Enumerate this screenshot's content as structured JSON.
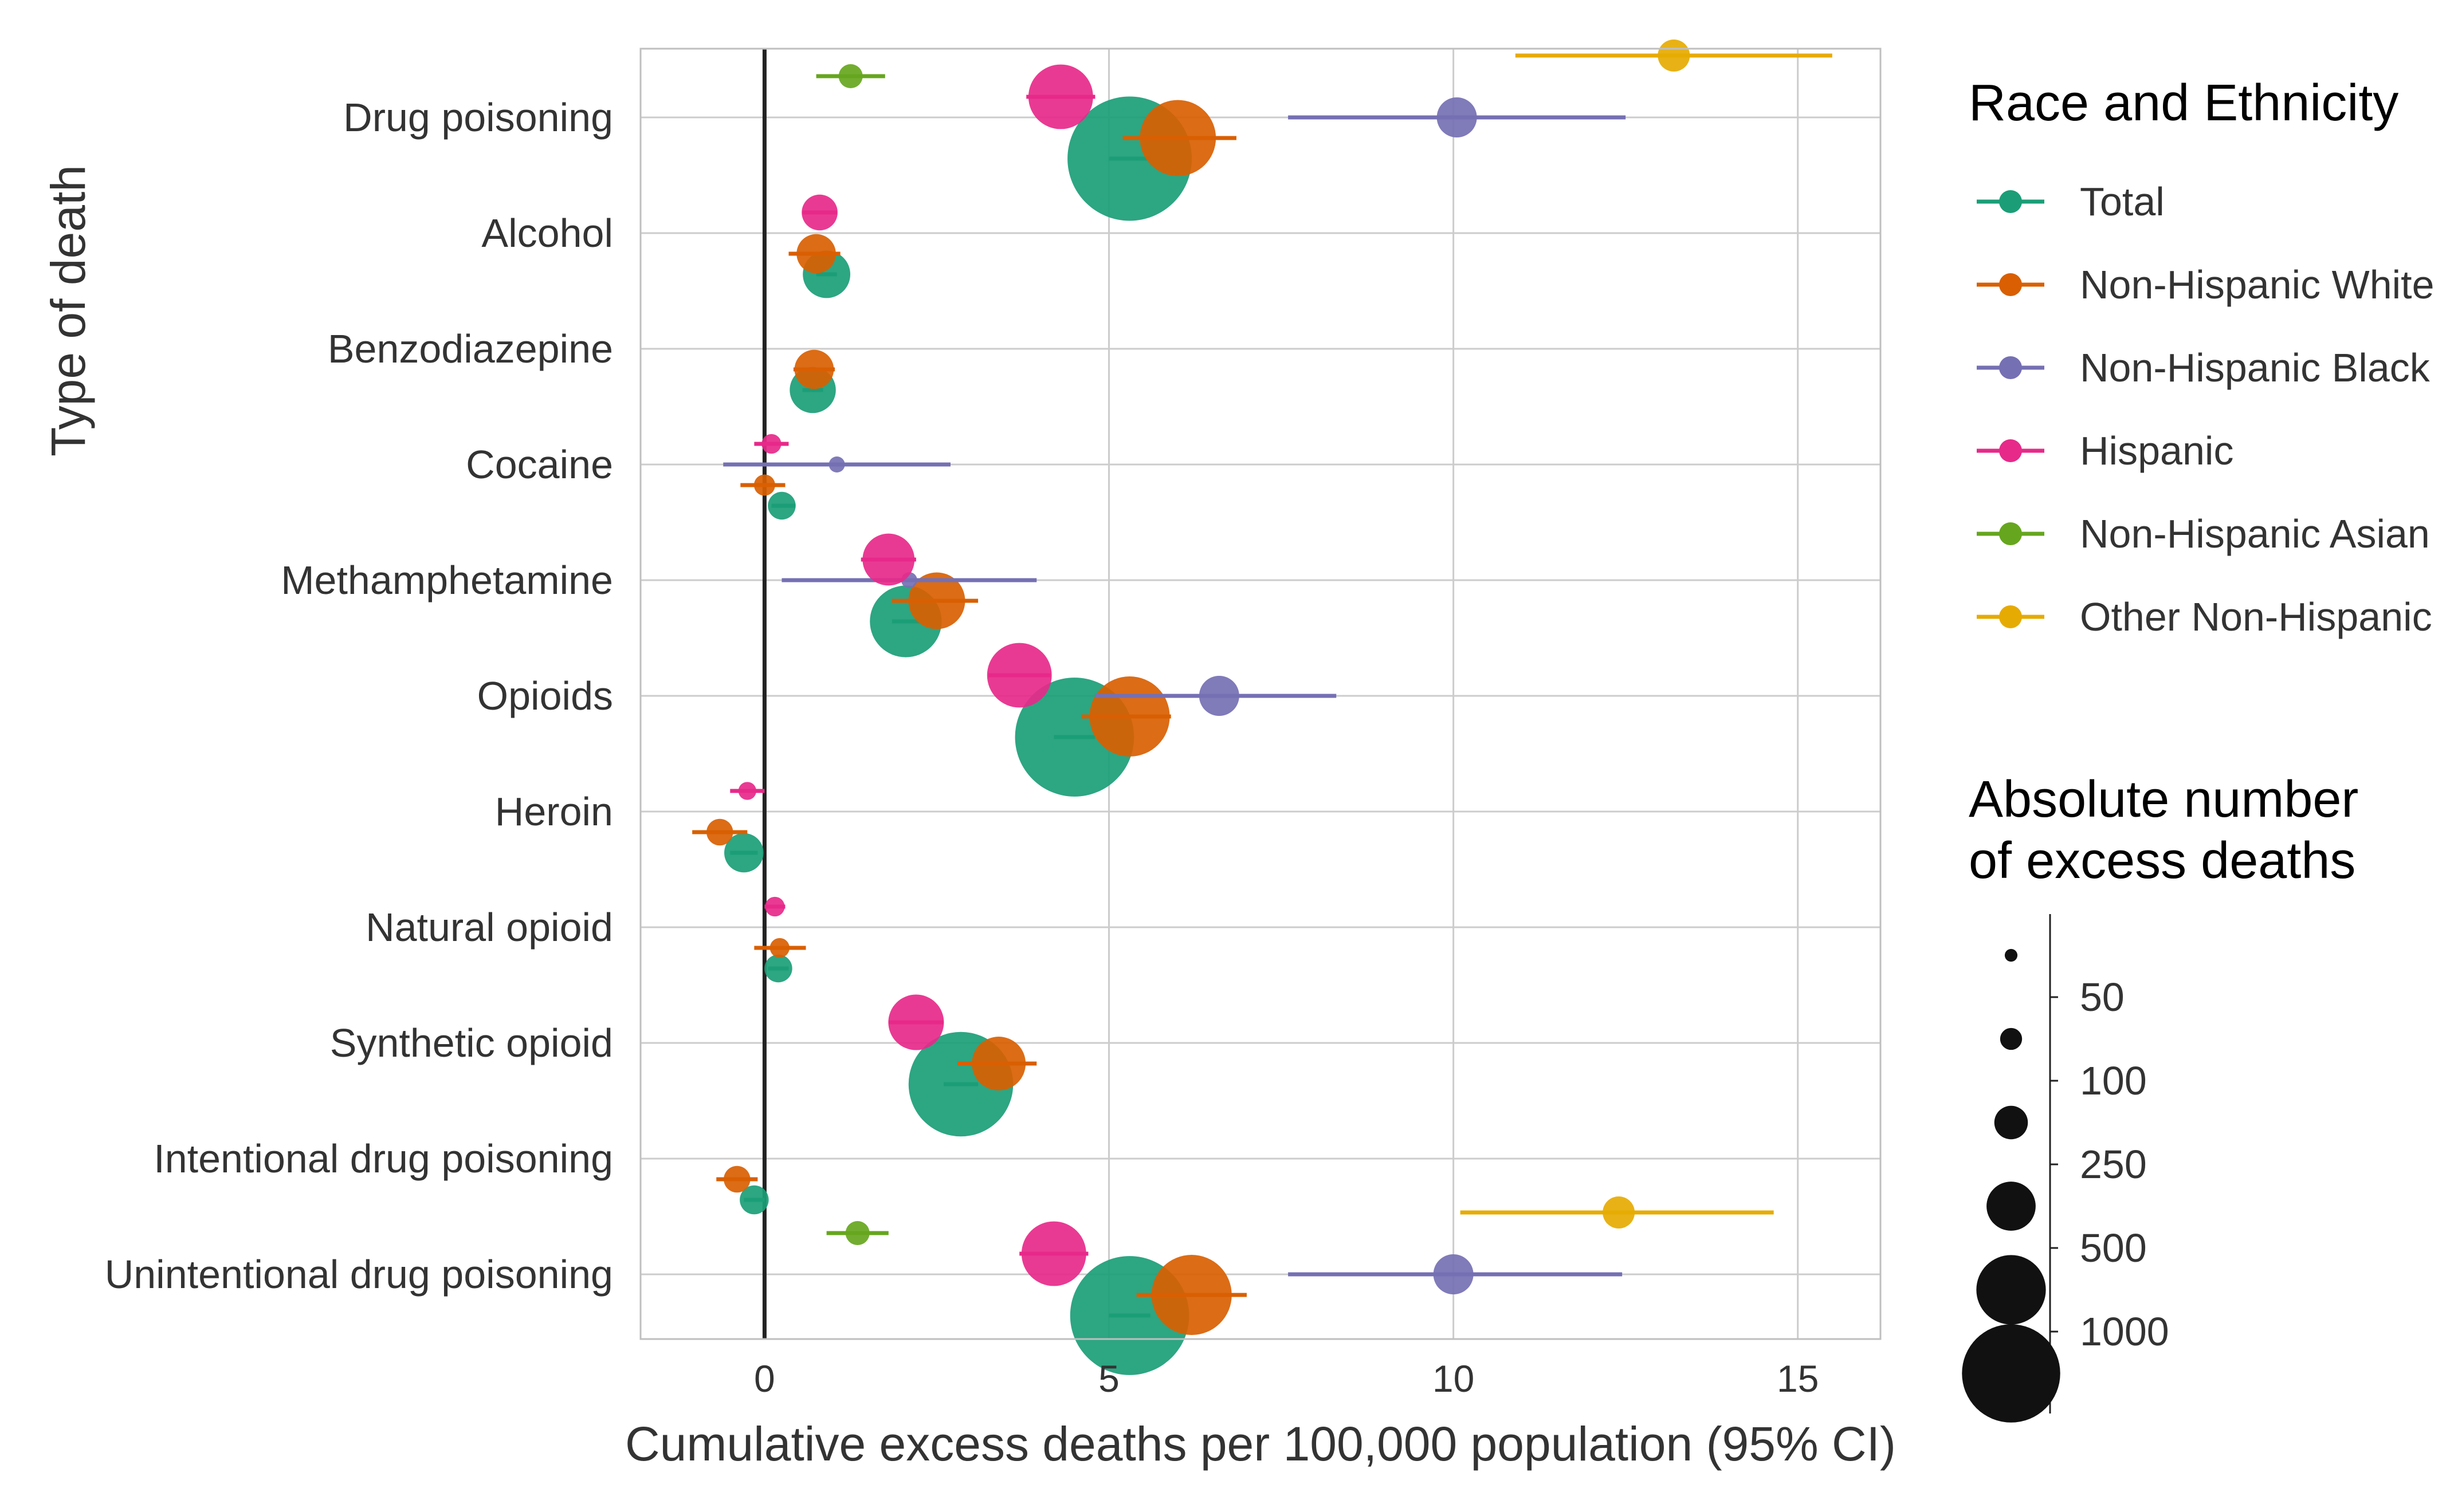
{
  "chart_data": {
    "type": "scatter",
    "xlabel": "Cumulative excess deaths per 100,000 population (95% CI)",
    "ylabel": "Type of death",
    "xlim": [
      -1.8,
      16.2
    ],
    "xticks": [
      0,
      5,
      10,
      15
    ],
    "xtick_labels": [
      "0",
      "5",
      "10",
      "15"
    ],
    "grid": true,
    "reference_line_x": 0,
    "legend_position": "right",
    "categories": [
      "Drug poisoning",
      "Alcohol",
      "Benzodiazepine",
      "Cocaine",
      "Methamphetamine",
      "Opioids",
      "Heroin",
      "Natural opioid",
      "Synthetic opioid",
      "Intentional drug poisoning",
      "Unintentional drug poisoning"
    ],
    "series": [
      {
        "name": "Total",
        "color": "#1b9e77",
        "points": [
          {
            "category": "Drug poisoning",
            "x": 5.3,
            "lo": 5.0,
            "hi": 5.6,
            "count": 2400
          },
          {
            "category": "Alcohol",
            "x": 0.9,
            "lo": 0.75,
            "hi": 1.05,
            "count": 350
          },
          {
            "category": "Benzodiazepine",
            "x": 0.7,
            "lo": 0.55,
            "hi": 0.85,
            "count": 330
          },
          {
            "category": "Cocaine",
            "x": 0.25,
            "lo": 0.1,
            "hi": 0.45,
            "count": 120
          },
          {
            "category": "Methamphetamine",
            "x": 2.05,
            "lo": 1.85,
            "hi": 2.25,
            "count": 800
          },
          {
            "category": "Opioids",
            "x": 4.5,
            "lo": 4.2,
            "hi": 4.8,
            "count": 2200
          },
          {
            "category": "Heroin",
            "x": -0.3,
            "lo": -0.5,
            "hi": -0.1,
            "count": 240
          },
          {
            "category": "Natural opioid",
            "x": 0.2,
            "lo": 0.05,
            "hi": 0.35,
            "count": 120
          },
          {
            "category": "Synthetic opioid",
            "x": 2.85,
            "lo": 2.6,
            "hi": 3.1,
            "count": 1700
          },
          {
            "category": "Intentional drug poisoning",
            "x": -0.15,
            "lo": -0.3,
            "hi": 0.0,
            "count": 130
          },
          {
            "category": "Unintentional drug poisoning",
            "x": 5.3,
            "lo": 5.0,
            "hi": 5.6,
            "count": 2200
          }
        ]
      },
      {
        "name": "Non-Hispanic White",
        "color": "#d95f02",
        "points": [
          {
            "category": "Drug poisoning",
            "x": 6.0,
            "lo": 5.2,
            "hi": 6.85,
            "count": 900
          },
          {
            "category": "Alcohol",
            "x": 0.75,
            "lo": 0.35,
            "hi": 1.1,
            "count": 240
          },
          {
            "category": "Benzodiazepine",
            "x": 0.72,
            "lo": 0.42,
            "hi": 1.02,
            "count": 240
          },
          {
            "category": "Cocaine",
            "x": 0.0,
            "lo": -0.35,
            "hi": 0.3,
            "count": 70
          },
          {
            "category": "Methamphetamine",
            "x": 2.5,
            "lo": 1.85,
            "hi": 3.1,
            "count": 500
          },
          {
            "category": "Opioids",
            "x": 5.3,
            "lo": 4.6,
            "hi": 5.9,
            "count": 1000
          },
          {
            "category": "Heroin",
            "x": -0.65,
            "lo": -1.05,
            "hi": -0.25,
            "count": 110
          },
          {
            "category": "Natural opioid",
            "x": 0.22,
            "lo": -0.15,
            "hi": 0.6,
            "count": 60
          },
          {
            "category": "Synthetic opioid",
            "x": 3.4,
            "lo": 2.8,
            "hi": 3.95,
            "count": 450
          },
          {
            "category": "Intentional drug poisoning",
            "x": -0.4,
            "lo": -0.7,
            "hi": -0.1,
            "count": 110
          },
          {
            "category": "Unintentional drug poisoning",
            "x": 6.2,
            "lo": 5.4,
            "hi": 7.0,
            "count": 1000
          }
        ]
      },
      {
        "name": "Non-Hispanic Black",
        "color": "#7570b3",
        "points": [
          {
            "category": "Drug poisoning",
            "x": 10.05,
            "lo": 7.6,
            "hi": 12.5,
            "count": 250
          },
          {
            "category": "Cocaine",
            "x": 1.05,
            "lo": -0.6,
            "hi": 2.7,
            "count": 40
          },
          {
            "category": "Methamphetamine",
            "x": 2.1,
            "lo": 0.25,
            "hi": 3.95,
            "count": 40
          },
          {
            "category": "Opioids",
            "x": 6.6,
            "lo": 4.8,
            "hi": 8.3,
            "count": 250
          },
          {
            "category": "Unintentional drug poisoning",
            "x": 10.0,
            "lo": 7.6,
            "hi": 12.45,
            "count": 250
          }
        ]
      },
      {
        "name": "Hispanic",
        "color": "#e7298a",
        "points": [
          {
            "category": "Drug poisoning",
            "x": 4.3,
            "lo": 3.8,
            "hi": 4.8,
            "count": 650
          },
          {
            "category": "Alcohol",
            "x": 0.8,
            "lo": 0.55,
            "hi": 1.05,
            "count": 200
          },
          {
            "category": "Cocaine",
            "x": 0.1,
            "lo": -0.15,
            "hi": 0.35,
            "count": 60
          },
          {
            "category": "Methamphetamine",
            "x": 1.8,
            "lo": 1.4,
            "hi": 2.2,
            "count": 420
          },
          {
            "category": "Opioids",
            "x": 3.7,
            "lo": 3.25,
            "hi": 4.15,
            "count": 650
          },
          {
            "category": "Heroin",
            "x": -0.25,
            "lo": -0.5,
            "hi": 0.0,
            "count": 50
          },
          {
            "category": "Natural opioid",
            "x": 0.15,
            "lo": 0.0,
            "hi": 0.3,
            "count": 60
          },
          {
            "category": "Synthetic opioid",
            "x": 2.2,
            "lo": 1.8,
            "hi": 2.6,
            "count": 480
          },
          {
            "category": "Unintentional drug poisoning",
            "x": 4.2,
            "lo": 3.7,
            "hi": 4.7,
            "count": 650
          }
        ]
      },
      {
        "name": "Non-Hispanic Asian",
        "color": "#66a61e",
        "points": [
          {
            "category": "Drug poisoning",
            "x": 1.25,
            "lo": 0.75,
            "hi": 1.75,
            "count": 90
          },
          {
            "category": "Unintentional drug poisoning",
            "x": 1.35,
            "lo": 0.9,
            "hi": 1.8,
            "count": 90
          }
        ]
      },
      {
        "name": "Other Non-Hispanic",
        "color": "#e6ab02",
        "points": [
          {
            "category": "Drug poisoning",
            "x": 13.2,
            "lo": 10.9,
            "hi": 15.5,
            "count": 160
          },
          {
            "category": "Unintentional drug poisoning",
            "x": 12.4,
            "lo": 10.1,
            "hi": 14.65,
            "count": 160
          }
        ]
      }
    ],
    "legend_color_title": "Race and Ethnicity",
    "legend_size_title": [
      "Absolute number",
      "of excess deaths"
    ],
    "legend_size_labels": [
      "50",
      "100",
      "250",
      "500",
      "1000"
    ],
    "legend_size_counts": [
      25,
      75,
      175,
      375,
      750,
      1500
    ]
  }
}
